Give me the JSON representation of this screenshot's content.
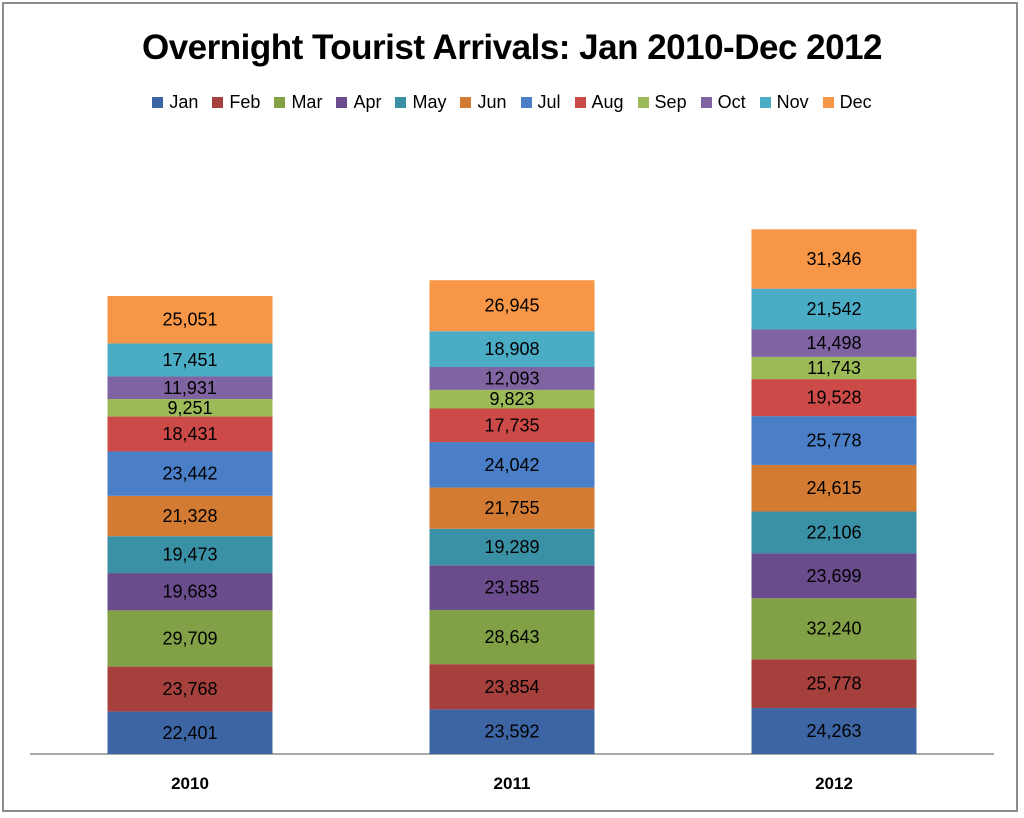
{
  "chart_data": {
    "type": "bar",
    "stacked": true,
    "title": "Overnight Tourist Arrivals: Jan 2010-Dec 2012",
    "categories": [
      "2010",
      "2011",
      "2012"
    ],
    "legend_position": "top",
    "grid": false,
    "series": [
      {
        "name": "Jan",
        "color": "#3d64a3",
        "values": [
          22401,
          23592,
          24263
        ],
        "labels": [
          "22,401",
          "23,592",
          "24,263"
        ]
      },
      {
        "name": "Feb",
        "color": "#a5403d",
        "values": [
          23768,
          23854,
          25778
        ],
        "labels": [
          "23,768",
          "23,854",
          "25,778"
        ]
      },
      {
        "name": "Mar",
        "color": "#82a046",
        "values": [
          29709,
          28643,
          32240
        ],
        "labels": [
          "29,709",
          "28,643",
          "32,240"
        ]
      },
      {
        "name": "Apr",
        "color": "#6a4c8c",
        "values": [
          19683,
          23585,
          23699
        ],
        "labels": [
          "19,683",
          "23,585",
          "23,699"
        ]
      },
      {
        "name": "May",
        "color": "#3a91a5",
        "values": [
          19473,
          19289,
          22106
        ],
        "labels": [
          "19,473",
          "19,289",
          "22,106"
        ]
      },
      {
        "name": "Jun",
        "color": "#d37a33",
        "values": [
          21328,
          21755,
          24615
        ],
        "labels": [
          "21,328",
          "21,755",
          "24,615"
        ]
      },
      {
        "name": "Jul",
        "color": "#4a7fc7",
        "values": [
          23442,
          24042,
          25778
        ],
        "labels": [
          "23,442",
          "24,042",
          "25,778"
        ]
      },
      {
        "name": "Aug",
        "color": "#cc4a47",
        "values": [
          18431,
          17735,
          19528
        ],
        "labels": [
          "18,431",
          "17,735",
          "19,528"
        ]
      },
      {
        "name": "Sep",
        "color": "#9cbb58",
        "values": [
          9251,
          9823,
          11743
        ],
        "labels": [
          "9,251",
          "9,823",
          "11,743"
        ]
      },
      {
        "name": "Oct",
        "color": "#8064a2",
        "values": [
          11931,
          12093,
          14498
        ],
        "labels": [
          "11,931",
          "12,093",
          "14,498"
        ]
      },
      {
        "name": "Nov",
        "color": "#4bacc6",
        "values": [
          17451,
          18908,
          21542
        ],
        "labels": [
          "17,451",
          "18,908",
          "21,542"
        ]
      },
      {
        "name": "Dec",
        "color": "#f79646",
        "values": [
          25051,
          26945,
          31346
        ],
        "labels": [
          "25,051",
          "26,945",
          "31,346"
        ]
      }
    ]
  }
}
